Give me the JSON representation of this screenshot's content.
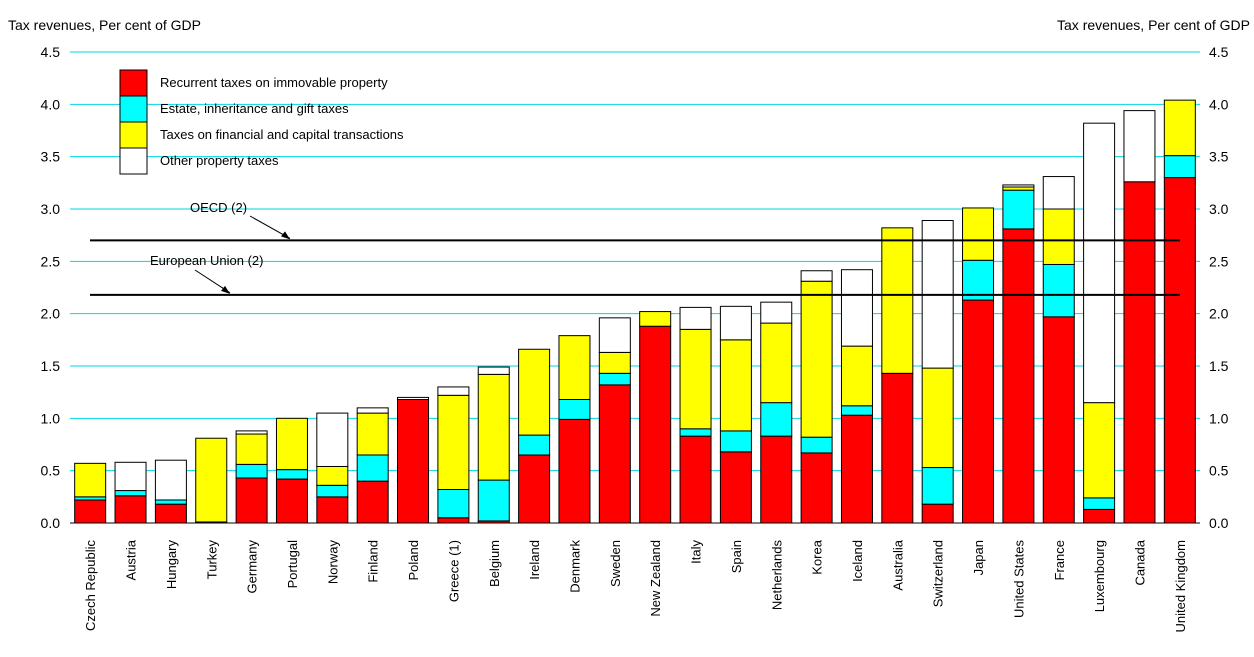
{
  "chart_data": {
    "type": "bar",
    "stacked": true,
    "ylabel_left": "Tax revenues, Per cent of GDP",
    "ylabel_right": "Tax revenues, Per cent of GDP",
    "ylim": [
      0,
      4.5
    ],
    "yticks": [
      "0.0",
      "0.5",
      "1.0",
      "1.5",
      "2.0",
      "2.5",
      "3.0",
      "3.5",
      "4.0",
      "4.5"
    ],
    "grid": "horizontal",
    "legend_position": "top-left",
    "categories": [
      "Czech Republic",
      "Austria",
      "Hungary",
      "Turkey",
      "Germany",
      "Portugal",
      "Norway",
      "Finland",
      "Poland",
      "Greece (1)",
      "Belgium",
      "Ireland",
      "Denmark",
      "Sweden",
      "New Zealand",
      "Italy",
      "Spain",
      "Netherlands",
      "Korea",
      "Iceland",
      "Australia",
      "Switzerland",
      "Japan",
      "United States",
      "France",
      "Luxembourg",
      "Canada",
      "United Kingdom"
    ],
    "series": [
      {
        "name": "Recurrent taxes on immovable property",
        "color": "#ff0000",
        "values": [
          0.22,
          0.26,
          0.18,
          0.01,
          0.43,
          0.42,
          0.25,
          0.4,
          1.18,
          0.05,
          0.02,
          0.65,
          0.99,
          1.32,
          1.88,
          0.83,
          0.68,
          0.83,
          0.67,
          1.03,
          1.43,
          0.18,
          2.13,
          2.81,
          1.97,
          0.13,
          3.26,
          3.3
        ]
      },
      {
        "name": "Estate, inheritance and gift taxes",
        "color": "#00ffff",
        "values": [
          0.03,
          0.05,
          0.04,
          0.0,
          0.13,
          0.09,
          0.11,
          0.25,
          0.0,
          0.27,
          0.39,
          0.19,
          0.19,
          0.11,
          0.0,
          0.07,
          0.2,
          0.32,
          0.15,
          0.09,
          0.0,
          0.35,
          0.38,
          0.37,
          0.5,
          0.11,
          0.0,
          0.21
        ]
      },
      {
        "name": "Taxes on financial and capital transactions",
        "color": "#ffff00",
        "values": [
          0.32,
          0.0,
          0.0,
          0.8,
          0.29,
          0.49,
          0.18,
          0.4,
          0.0,
          0.9,
          1.01,
          0.82,
          0.61,
          0.2,
          0.14,
          0.95,
          0.87,
          0.76,
          1.49,
          0.57,
          1.39,
          0.95,
          0.5,
          0.03,
          0.53,
          0.91,
          0.0,
          0.53
        ]
      },
      {
        "name": "Other property taxes",
        "color": "#ffffff",
        "values": [
          0.0,
          0.27,
          0.38,
          0.0,
          0.03,
          0.0,
          0.51,
          0.05,
          0.02,
          0.08,
          0.07,
          0.0,
          0.0,
          0.33,
          0.0,
          0.21,
          0.32,
          0.2,
          0.1,
          0.73,
          0.0,
          1.41,
          0.0,
          0.02,
          0.31,
          2.67,
          0.68,
          0.0
        ]
      }
    ],
    "reference_lines": [
      {
        "label": "OECD (2)",
        "value": 2.7
      },
      {
        "label": "European Union (2)",
        "value": 2.18
      }
    ]
  }
}
